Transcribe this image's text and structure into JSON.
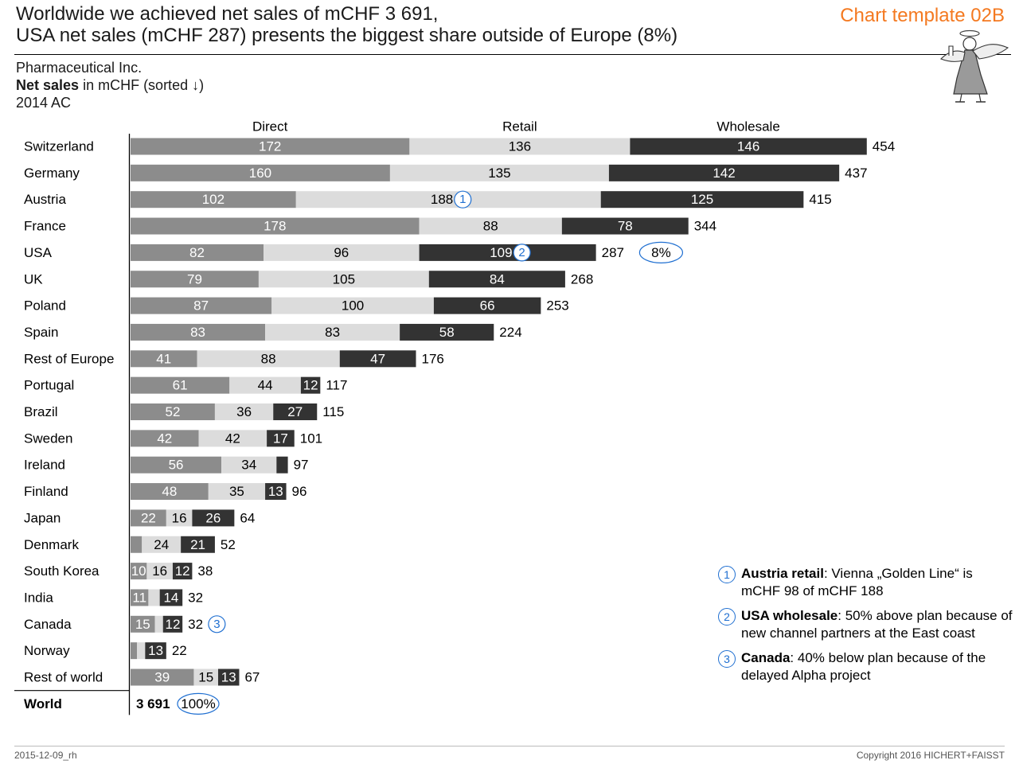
{
  "header": {
    "title_line1": "Worldwide we achieved net sales of mCHF 3 691,",
    "title_line2": "USA net sales (mCHF 287) presents the biggest share outside of Europe (8%)",
    "template_label": "Chart template 02B"
  },
  "subtitle": {
    "company": "Pharmaceutical Inc.",
    "measure_bold": "Net sales",
    "measure_rest": " in mCHF (sorted ↓)",
    "period": "2014 AC"
  },
  "chart_data": {
    "type": "bar",
    "orientation": "horizontal",
    "stacked": true,
    "categories": [
      "Switzerland",
      "Germany",
      "Austria",
      "France",
      "USA",
      "UK",
      "Poland",
      "Spain",
      "Rest of Europe",
      "Portugal",
      "Brazil",
      "Sweden",
      "Ireland",
      "Finland",
      "Japan",
      "Denmark",
      "South Korea",
      "India",
      "Canada",
      "Norway",
      "Rest of world"
    ],
    "series": [
      {
        "name": "Direct",
        "color": "#8c8c8c",
        "label_color": "#ffffff",
        "values": [
          172,
          160,
          102,
          178,
          82,
          79,
          87,
          83,
          41,
          61,
          52,
          42,
          56,
          48,
          22,
          7,
          10,
          11,
          15,
          4,
          39
        ],
        "labels": [
          "172",
          "160",
          "102",
          "178",
          "82",
          "79",
          "87",
          "83",
          "41",
          "61",
          "52",
          "42",
          "56",
          "48",
          "22",
          "",
          "10",
          "11",
          "15",
          "",
          "39"
        ]
      },
      {
        "name": "Retail",
        "color": "#dcdcdc",
        "label_color": "#000000",
        "values": [
          136,
          135,
          188,
          88,
          96,
          105,
          100,
          83,
          88,
          44,
          36,
          42,
          34,
          35,
          16,
          24,
          16,
          7,
          5,
          5,
          15
        ],
        "labels": [
          "136",
          "135",
          "188",
          "88",
          "96",
          "105",
          "100",
          "83",
          "88",
          "44",
          "36",
          "42",
          "34",
          "35",
          "16",
          "24",
          "16",
          "",
          "",
          "",
          "15"
        ]
      },
      {
        "name": "Wholesale",
        "color": "#333333",
        "label_color": "#ffffff",
        "values": [
          146,
          142,
          125,
          78,
          109,
          84,
          66,
          58,
          47,
          12,
          27,
          17,
          7,
          13,
          26,
          21,
          12,
          14,
          12,
          13,
          13
        ],
        "labels": [
          "146",
          "142",
          "125",
          "78",
          "109",
          "84",
          "66",
          "58",
          "47",
          "12",
          "27",
          "17",
          "",
          "13",
          "26",
          "21",
          "12",
          "14",
          "12",
          "13",
          "13"
        ]
      }
    ],
    "totals": [
      "454",
      "437",
      "415",
      "344",
      "287",
      "268",
      "253",
      "224",
      "176",
      "117",
      "115",
      "101",
      "97",
      "96",
      "64",
      "52",
      "38",
      "32",
      "32",
      "22",
      "67"
    ],
    "markers": [
      {
        "row": 2,
        "series": 1,
        "label": "1"
      },
      {
        "row": 4,
        "series": 2,
        "label": "2"
      },
      {
        "row": 18,
        "series": "total",
        "label": "3"
      }
    ],
    "share_badges": [
      {
        "row": 4,
        "label": "8%"
      }
    ],
    "total_row": {
      "label": "World",
      "value": "3 691",
      "share": "100%"
    },
    "xlim": [
      0,
      454
    ]
  },
  "notes": [
    {
      "marker": "1",
      "bold": "Austria retail",
      "text": ": Vienna „Golden Line“ is mCHF 98 of mCHF 188"
    },
    {
      "marker": "2",
      "bold": "USA wholesale",
      "text": ": 50% above plan because of new channel partners at the East coast"
    },
    {
      "marker": "3",
      "bold": "Canada",
      "text": ": 40% below plan because of the delayed Alpha project"
    }
  ],
  "footer": {
    "left": "2015-12-09_rh",
    "right": "Copyright 2016 HICHERT+FAISST"
  },
  "colors": {
    "accent": "#f47920",
    "marker_blue": "#1f6fd1"
  },
  "icons": {
    "angel": "angel-mascot-icon"
  }
}
